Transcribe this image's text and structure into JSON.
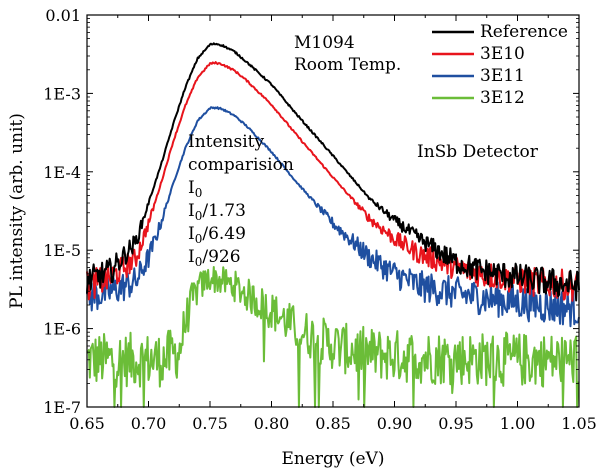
{
  "chart_data": {
    "type": "line",
    "xlabel": "Energy (eV)",
    "ylabel": "PL intensity (arb. unit)",
    "xlim": [
      0.65,
      1.05
    ],
    "ylim": [
      1e-07,
      0.01
    ],
    "log_y": true,
    "x_ticks": [
      0.65,
      0.7,
      0.75,
      0.8,
      0.85,
      0.9,
      0.95,
      1.0,
      1.05
    ],
    "x_tick_labels": [
      "0.65",
      "0.70",
      "0.75",
      "0.80",
      "0.85",
      "0.90",
      "0.95",
      "1.00",
      "1.05"
    ],
    "y_ticks": [
      1e-07,
      1e-06,
      1e-05,
      0.0001,
      0.001,
      0.01
    ],
    "y_tick_labels": [
      "1E-7",
      "1E-6",
      "1E-5",
      "1E-4",
      "1E-3",
      "0.01"
    ],
    "legend_position": "top-right",
    "annotations": {
      "sample": "M1094",
      "temperature": "Room Temp.",
      "detector": "InSb Detector",
      "comparison_title_1": "Intensity",
      "comparison_title_2": "comparision",
      "ratios": [
        {
          "base": "I",
          "sub": "0",
          "suffix": ""
        },
        {
          "base": "I",
          "sub": "0",
          "suffix": "/1.73"
        },
        {
          "base": "I",
          "sub": "0",
          "suffix": "/6.49"
        },
        {
          "base": "I",
          "sub": "0",
          "suffix": "/926"
        }
      ]
    },
    "series": [
      {
        "name": "Reference",
        "color": "#000000",
        "x": [
          0.65,
          0.67,
          0.69,
          0.7,
          0.71,
          0.72,
          0.73,
          0.74,
          0.75,
          0.755,
          0.76,
          0.77,
          0.78,
          0.8,
          0.82,
          0.85,
          0.88,
          0.9,
          0.92,
          0.95,
          0.97,
          1.0,
          1.02,
          1.05
        ],
        "y": [
          4e-06,
          5.5e-06,
          1.3e-05,
          4e-05,
          0.00012,
          0.0004,
          0.0012,
          0.0028,
          0.0042,
          0.0043,
          0.0041,
          0.0034,
          0.0025,
          0.0013,
          0.00055,
          0.00016,
          4.5e-05,
          2.4e-05,
          1.4e-05,
          7e-06,
          5.5e-06,
          4.5e-06,
          4e-06,
          3.5e-06
        ]
      },
      {
        "name": "3E10",
        "color": "#e8141c",
        "x": [
          0.65,
          0.67,
          0.69,
          0.7,
          0.71,
          0.72,
          0.73,
          0.74,
          0.75,
          0.755,
          0.76,
          0.77,
          0.78,
          0.8,
          0.82,
          0.85,
          0.88,
          0.9,
          0.92,
          0.95,
          0.97,
          1.0,
          1.02,
          1.05
        ],
        "y": [
          3.5e-06,
          4.5e-06,
          8e-06,
          2.2e-05,
          7e-05,
          0.00024,
          0.0007,
          0.0016,
          0.0024,
          0.00245,
          0.00235,
          0.00195,
          0.00145,
          0.00072,
          0.0003,
          8.5e-05,
          2.5e-05,
          1.4e-05,
          9e-06,
          6e-06,
          5e-06,
          4.2e-06,
          3.8e-06,
          3.5e-06
        ]
      },
      {
        "name": "3E11",
        "color": "#1f4fa0",
        "x": [
          0.65,
          0.67,
          0.69,
          0.7,
          0.71,
          0.72,
          0.73,
          0.74,
          0.75,
          0.755,
          0.76,
          0.77,
          0.78,
          0.8,
          0.82,
          0.85,
          0.88,
          0.9,
          0.92,
          0.95,
          0.97,
          1.0,
          1.02,
          1.05
        ],
        "y": [
          2.5e-06,
          3e-06,
          4e-06,
          8e-06,
          2.2e-05,
          7e-05,
          0.0002,
          0.00045,
          0.00065,
          0.00066,
          0.00063,
          0.00052,
          0.00038,
          0.00018,
          7.5e-05,
          2.2e-05,
          8e-06,
          5e-06,
          3.5e-06,
          2.8e-06,
          2.5e-06,
          2.2e-06,
          2e-06,
          1.8e-06
        ]
      },
      {
        "name": "3E12",
        "color": "#6bbd38",
        "x": [
          0.65,
          0.67,
          0.69,
          0.71,
          0.725,
          0.73,
          0.735,
          0.74,
          0.75,
          0.76,
          0.77,
          0.78,
          0.8,
          0.82,
          0.84,
          0.86,
          0.88,
          0.9,
          0.92,
          0.95,
          0.97,
          1.0,
          1.02,
          1.05
        ],
        "y": [
          4e-07,
          4e-07,
          4e-07,
          4e-07,
          5e-07,
          1.2e-06,
          2.2e-06,
          3.2e-06,
          4.5e-06,
          4e-06,
          3.5e-06,
          2.7e-06,
          1.7e-06,
          1e-06,
          7e-07,
          5.5e-07,
          4.8e-07,
          4.5e-07,
          4.3e-07,
          4.2e-07,
          4.1e-07,
          4e-07,
          4e-07,
          4e-07
        ]
      }
    ]
  }
}
